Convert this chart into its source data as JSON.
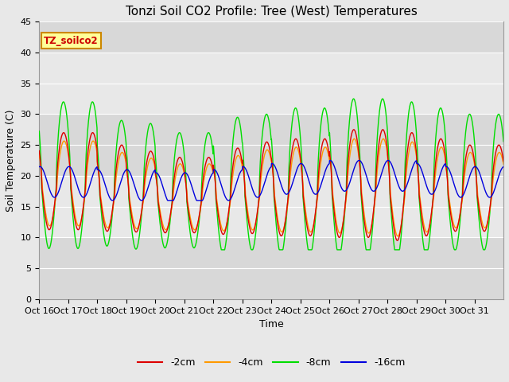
{
  "title": "Tonzi Soil CO2 Profile: Tree (West) Temperatures",
  "xlabel": "Time",
  "ylabel": "Soil Temperature (C)",
  "ylim": [
    0,
    45
  ],
  "yticks": [
    0,
    5,
    10,
    15,
    20,
    25,
    30,
    35,
    40,
    45
  ],
  "background_color": "#e8e8e8",
  "plot_bg_color": "#e0e0e0",
  "legend_label": "TZ_soilco2",
  "series_labels": [
    "-2cm",
    "-4cm",
    "-8cm",
    "-16cm"
  ],
  "series_colors": [
    "#dd0000",
    "#ff9900",
    "#00dd00",
    "#0000dd"
  ],
  "n_days": 16,
  "start_day": 16,
  "figsize": [
    6.4,
    4.8
  ],
  "dpi": 100
}
